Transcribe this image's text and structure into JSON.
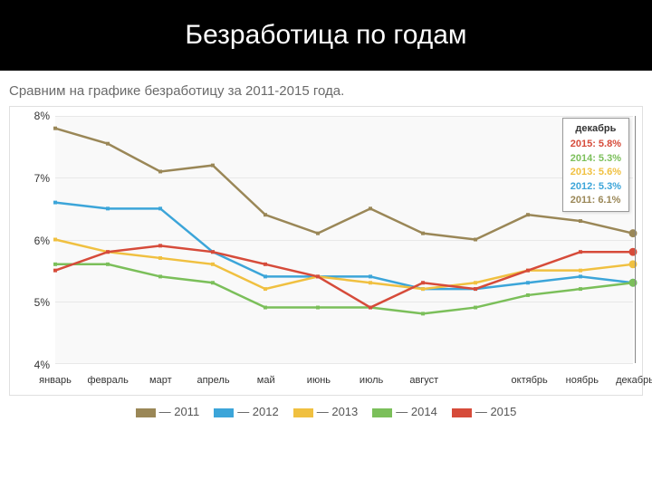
{
  "title": "Безработица по годам",
  "subtitle": "Сравним на графике безработицу за 2011-2015 года.",
  "chart": {
    "type": "line",
    "background_color": "#f9f9f9",
    "grid_color": "#e8e8e8",
    "border_color": "#e0e0e0",
    "ylim": [
      4,
      8
    ],
    "ytick_step": 1,
    "y_suffix": "%",
    "y_label_fontsize": 12,
    "x_label_fontsize": 11,
    "line_width": 2.5,
    "marker_size": 4,
    "months": [
      "январь",
      "февраль",
      "март",
      "апрель",
      "май",
      "июнь",
      "июль",
      "август",
      "",
      "октябрь",
      "ноябрь",
      "декабрь"
    ],
    "series": [
      {
        "name": "2011",
        "color": "#9a8757",
        "values": [
          7.8,
          7.55,
          7.1,
          7.2,
          6.4,
          6.1,
          6.5,
          6.1,
          6.0,
          6.4,
          6.3,
          6.1
        ]
      },
      {
        "name": "2012",
        "color": "#3ca5d9",
        "values": [
          6.6,
          6.5,
          6.5,
          5.8,
          5.4,
          5.4,
          5.4,
          5.2,
          5.2,
          5.3,
          5.4,
          5.3
        ]
      },
      {
        "name": "2013",
        "color": "#f0c040",
        "values": [
          6.0,
          5.8,
          5.7,
          5.6,
          5.2,
          5.4,
          5.3,
          5.2,
          5.3,
          5.5,
          5.5,
          5.6
        ]
      },
      {
        "name": "2014",
        "color": "#7bbf5a",
        "values": [
          5.6,
          5.6,
          5.4,
          5.3,
          4.9,
          4.9,
          4.9,
          4.8,
          4.9,
          5.1,
          5.2,
          5.3
        ]
      },
      {
        "name": "2015",
        "color": "#d64b3a",
        "values": [
          5.5,
          5.8,
          5.9,
          5.8,
          5.6,
          5.4,
          4.9,
          5.3,
          5.2,
          5.5,
          5.8,
          5.8
        ]
      }
    ],
    "tooltip": {
      "month_label": "декабрь",
      "vline_x_index": 11,
      "rows": [
        {
          "text": "2015: 5.8%",
          "color": "#d64b3a"
        },
        {
          "text": "2014: 5.3%",
          "color": "#7bbf5a"
        },
        {
          "text": "2013: 5.6%",
          "color": "#f0c040"
        },
        {
          "text": "2012: 5.3%",
          "color": "#3ca5d9"
        },
        {
          "text": "2011: 6.1%",
          "color": "#9a8757"
        }
      ]
    }
  },
  "legend": {
    "dash": "—",
    "items": [
      {
        "label": "2011",
        "color": "#9a8757"
      },
      {
        "label": "2012",
        "color": "#3ca5d9"
      },
      {
        "label": "2013",
        "color": "#f0c040"
      },
      {
        "label": "2014",
        "color": "#7bbf5a"
      },
      {
        "label": "2015",
        "color": "#d64b3a"
      }
    ]
  }
}
